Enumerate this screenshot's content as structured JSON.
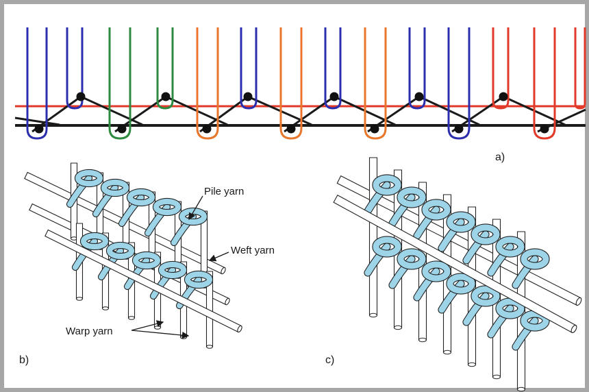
{
  "labels": {
    "pile_yarn": "Pile yarn",
    "weft_yarn": "Weft yarn",
    "warp_yarn": "Warp yarn"
  },
  "panels": {
    "a": "a)",
    "b": "b)",
    "c": "c)"
  },
  "colors": {
    "frame": "#a7a7a7",
    "pile_fill": "#9ed4e8",
    "outline": "#222222",
    "yarn_blue": "#2b2fae",
    "yarn_green": "#2e8a3e",
    "yarn_orange": "#e8772c",
    "yarn_red": "#e23a2a",
    "weft_black": "#1a1a1a"
  }
}
